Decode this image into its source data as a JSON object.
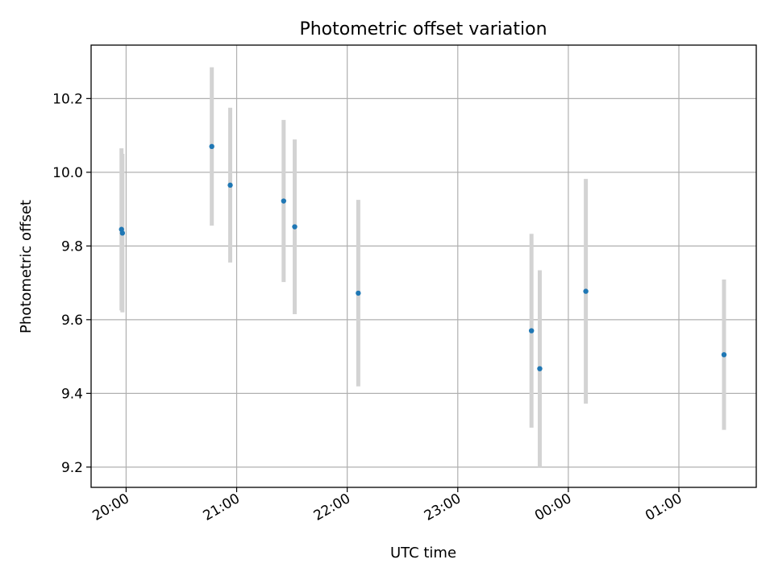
{
  "chart_data": {
    "type": "scatter",
    "title": "Photometric offset variation",
    "xlabel": "UTC time",
    "ylabel": "Photometric offset",
    "xlim": [
      "2020-01-01T19:41:00",
      "2020-01-02T01:42:00"
    ],
    "ylim": [
      9.145,
      10.345
    ],
    "x_ticks": [
      {
        "t": "2020-01-01T20:00:00",
        "label": "20:00"
      },
      {
        "t": "2020-01-01T21:00:00",
        "label": "21:00"
      },
      {
        "t": "2020-01-01T22:00:00",
        "label": "22:00"
      },
      {
        "t": "2020-01-01T23:00:00",
        "label": "23:00"
      },
      {
        "t": "2020-01-02T00:00:00",
        "label": "00:00"
      },
      {
        "t": "2020-01-02T01:00:00",
        "label": "01:00"
      }
    ],
    "y_ticks": [
      9.2,
      9.4,
      9.6,
      9.8,
      10.0,
      10.2
    ],
    "y_tick_labels": [
      "9.2",
      "9.4",
      "9.6",
      "9.8",
      "10.0",
      "10.2"
    ],
    "grid": true,
    "marker_color": "#1f77b4",
    "errorbar_color": "#d3d3d3",
    "points": [
      {
        "t": "2020-01-01T19:57:30",
        "y": 9.845,
        "err": 0.22
      },
      {
        "t": "2020-01-01T19:58:00",
        "y": 9.835,
        "err": 0.215
      },
      {
        "t": "2020-01-01T20:46:30",
        "y": 10.07,
        "err": 0.215
      },
      {
        "t": "2020-01-01T20:56:30",
        "y": 9.965,
        "err": 0.21
      },
      {
        "t": "2020-01-01T21:25:30",
        "y": 9.922,
        "err": 0.22
      },
      {
        "t": "2020-01-01T21:31:30",
        "y": 9.852,
        "err": 0.237
      },
      {
        "t": "2020-01-01T22:06:00",
        "y": 9.672,
        "err": 0.253
      },
      {
        "t": "2020-01-01T23:40:00",
        "y": 9.57,
        "err": 0.263
      },
      {
        "t": "2020-01-01T23:44:30",
        "y": 9.467,
        "err": 0.267
      },
      {
        "t": "2020-01-02T00:09:30",
        "y": 9.677,
        "err": 0.305
      },
      {
        "t": "2020-01-02T01:24:30",
        "y": 9.505,
        "err": 0.204
      }
    ]
  }
}
